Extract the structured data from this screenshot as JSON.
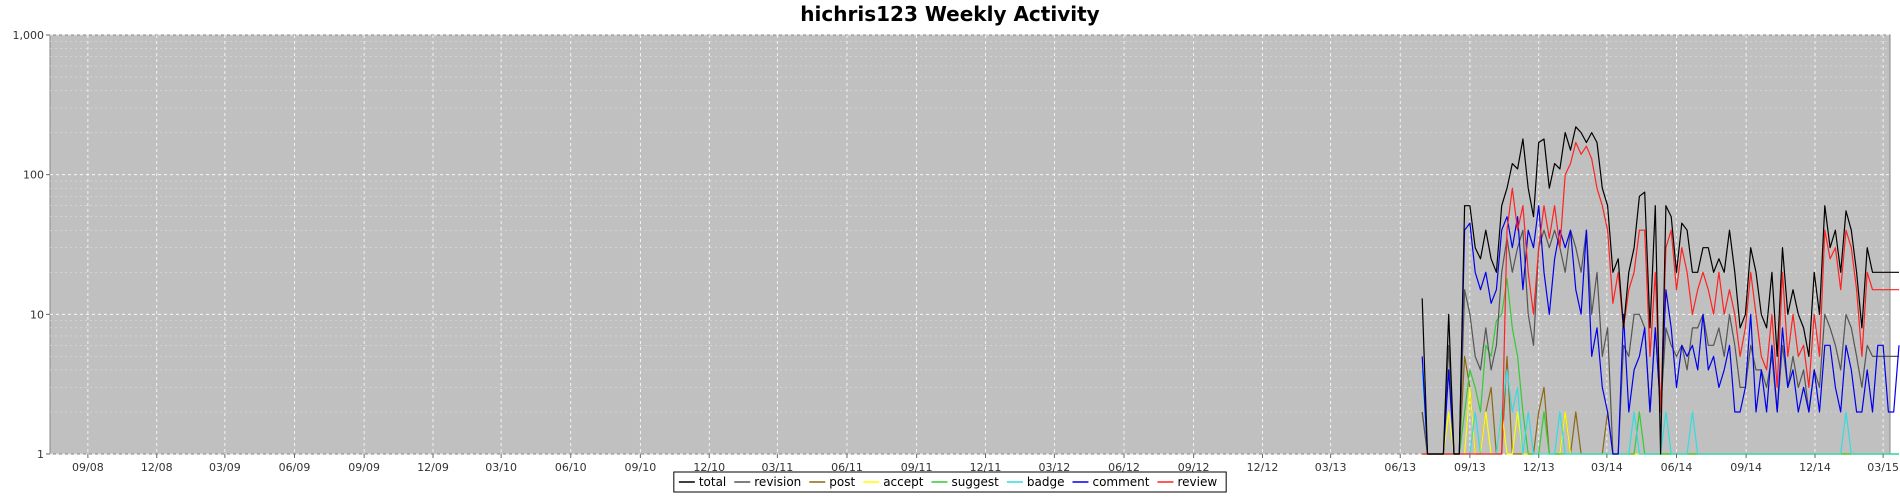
{
  "chart_data": {
    "type": "line",
    "title": "hichris123 Weekly Activity",
    "xlabel": "",
    "ylabel": "",
    "y_scale": "log",
    "ylim": [
      1,
      1000
    ],
    "y_ticks": [
      1,
      10,
      100,
      1000
    ],
    "y_tick_labels": [
      "1",
      "10",
      "100",
      "1,000"
    ],
    "grid": true,
    "legend_position": "bottom-center",
    "x_tick_labels": [
      "09/08",
      "12/08",
      "03/09",
      "06/09",
      "09/09",
      "12/09",
      "03/10",
      "06/10",
      "09/10",
      "12/10",
      "03/11",
      "06/11",
      "09/11",
      "12/11",
      "03/12",
      "06/12",
      "09/12",
      "12/12",
      "03/13",
      "06/13",
      "09/13",
      "12/13",
      "03/14",
      "06/14",
      "09/14",
      "12/14",
      "03/15"
    ],
    "x_weeks": [
      "2013-06-30",
      "2013-07-07",
      "2013-07-14",
      "2013-07-21",
      "2013-07-28",
      "2013-08-04",
      "2013-08-11",
      "2013-08-18",
      "2013-08-25",
      "2013-09-01",
      "2013-09-08",
      "2013-09-15",
      "2013-09-22",
      "2013-09-29",
      "2013-10-06",
      "2013-10-13",
      "2013-10-20",
      "2013-10-27",
      "2013-11-03",
      "2013-11-10",
      "2013-11-17",
      "2013-11-24",
      "2013-12-01",
      "2013-12-08",
      "2013-12-15",
      "2013-12-22",
      "2013-12-29",
      "2014-01-05",
      "2014-01-12",
      "2014-01-19",
      "2014-01-26",
      "2014-02-02",
      "2014-02-09",
      "2014-02-16",
      "2014-02-23",
      "2014-03-02",
      "2014-03-09",
      "2014-03-16",
      "2014-03-23",
      "2014-03-30",
      "2014-04-06",
      "2014-04-13",
      "2014-04-20",
      "2014-04-27",
      "2014-05-04",
      "2014-05-11",
      "2014-05-18",
      "2014-05-25",
      "2014-06-01",
      "2014-06-08",
      "2014-06-15",
      "2014-06-22",
      "2014-06-29",
      "2014-07-06",
      "2014-07-13",
      "2014-07-20",
      "2014-07-27",
      "2014-08-03",
      "2014-08-10",
      "2014-08-17",
      "2014-08-24",
      "2014-08-31",
      "2014-09-07",
      "2014-09-14",
      "2014-09-21",
      "2014-09-28",
      "2014-10-05",
      "2014-10-12",
      "2014-10-19",
      "2014-10-26",
      "2014-11-02",
      "2014-11-09",
      "2014-11-16",
      "2014-11-23",
      "2014-11-30",
      "2014-12-07",
      "2014-12-14",
      "2014-12-21",
      "2014-12-28",
      "2015-01-04",
      "2015-01-11",
      "2015-01-18",
      "2015-01-25",
      "2015-02-01",
      "2015-02-08",
      "2015-02-15",
      "2015-02-22",
      "2015-03-01",
      "2015-03-08",
      "2015-03-15",
      "2015-03-22"
    ],
    "series": [
      {
        "name": "total",
        "color": "#000000",
        "values": [
          13,
          1,
          1,
          1,
          1,
          10,
          1,
          1,
          60,
          60,
          30,
          25,
          40,
          25,
          20,
          60,
          80,
          120,
          110,
          180,
          80,
          50,
          170,
          180,
          80,
          120,
          110,
          200,
          150,
          220,
          200,
          170,
          200,
          170,
          80,
          60,
          20,
          25,
          8,
          20,
          30,
          70,
          75,
          8,
          60,
          1,
          60,
          50,
          20,
          45,
          40,
          20,
          20,
          30,
          30,
          20,
          25,
          20,
          40,
          20,
          8,
          10,
          30,
          20,
          10,
          8,
          20,
          5,
          30,
          10,
          15,
          10,
          8,
          5,
          20,
          10,
          60,
          30,
          40,
          20,
          55,
          40,
          20,
          8,
          30,
          20,
          20,
          20,
          20,
          20,
          20
        ]
      },
      {
        "name": "revision",
        "color": "#555555",
        "values": [
          2,
          1,
          1,
          1,
          1,
          6,
          1,
          1,
          15,
          10,
          5,
          4,
          8,
          4,
          6,
          20,
          35,
          20,
          30,
          40,
          10,
          6,
          30,
          40,
          30,
          40,
          30,
          20,
          40,
          30,
          20,
          40,
          10,
          20,
          5,
          8,
          1,
          1,
          6,
          5,
          10,
          10,
          8,
          2,
          8,
          2,
          8,
          6,
          5,
          6,
          4,
          8,
          8,
          10,
          6,
          6,
          8,
          5,
          10,
          6,
          3,
          3,
          6,
          4,
          4,
          3,
          5,
          2,
          6,
          3,
          5,
          3,
          4,
          2,
          4,
          3,
          10,
          8,
          6,
          4,
          10,
          8,
          5,
          3,
          6,
          5,
          5,
          5,
          5,
          5,
          5
        ]
      },
      {
        "name": "post",
        "color": "#8b6914",
        "values": [
          2,
          1,
          1,
          1,
          1,
          1,
          1,
          1,
          5,
          3,
          1,
          1,
          2,
          3,
          1,
          1,
          5,
          1,
          1,
          1,
          1,
          1,
          2,
          3,
          1,
          1,
          1,
          2,
          1,
          2,
          1,
          1,
          1,
          1,
          1,
          2,
          1,
          1,
          1,
          1,
          1,
          1,
          1,
          1,
          1,
          1,
          1,
          1,
          1,
          1,
          1,
          1,
          1,
          1,
          1,
          1,
          1,
          1,
          1,
          1,
          1,
          1,
          1,
          1,
          1,
          1,
          1,
          1,
          1,
          1,
          1,
          1,
          1,
          1,
          1,
          1,
          1,
          1,
          1,
          1,
          1,
          1,
          1,
          1,
          1,
          1,
          1,
          1,
          1,
          1,
          1
        ]
      },
      {
        "name": "accept",
        "color": "#ffff00",
        "values": [
          1,
          1,
          1,
          1,
          1,
          2,
          1,
          1,
          1,
          3,
          1,
          1,
          2,
          1,
          1,
          2,
          1,
          1,
          2,
          1,
          1,
          1,
          1,
          1,
          1,
          1,
          1,
          2,
          1,
          1,
          1,
          1,
          1,
          1,
          1,
          1,
          1,
          1,
          1,
          1,
          1,
          1,
          1,
          1,
          1,
          1,
          1,
          1,
          1,
          1,
          1,
          1,
          1,
          1,
          1,
          1,
          1,
          1,
          1,
          1,
          1,
          1,
          1,
          1,
          1,
          1,
          1,
          1,
          1,
          1,
          1,
          1,
          1,
          1,
          1,
          1,
          1,
          1,
          1,
          1,
          1,
          1,
          1,
          1,
          1,
          1,
          1,
          1,
          1,
          1,
          1
        ]
      },
      {
        "name": "suggest",
        "color": "#33cc33",
        "values": [
          1,
          1,
          1,
          1,
          1,
          1,
          1,
          1,
          2,
          4,
          3,
          2,
          6,
          5,
          9,
          10,
          18,
          8,
          5,
          2,
          1,
          1,
          1,
          2,
          1,
          1,
          1,
          1,
          1,
          1,
          1,
          1,
          1,
          1,
          1,
          1,
          1,
          1,
          1,
          1,
          1,
          2,
          1,
          1,
          1,
          1,
          1,
          1,
          1,
          1,
          1,
          1,
          1,
          1,
          1,
          1,
          1,
          1,
          1,
          1,
          1,
          1,
          1,
          1,
          1,
          1,
          1,
          1,
          1,
          1,
          1,
          1,
          1,
          1,
          1,
          1,
          1,
          1,
          1,
          1,
          1,
          1,
          1,
          1,
          1,
          1,
          1,
          1,
          1,
          1,
          1
        ]
      },
      {
        "name": "badge",
        "color": "#33dddd",
        "values": [
          4,
          1,
          1,
          1,
          1,
          1,
          1,
          1,
          1,
          1,
          2,
          1,
          1,
          1,
          1,
          2,
          4,
          2,
          3,
          1,
          2,
          1,
          1,
          1,
          1,
          1,
          2,
          1,
          1,
          1,
          1,
          1,
          1,
          1,
          1,
          1,
          1,
          1,
          1,
          1,
          2,
          1,
          1,
          1,
          1,
          1,
          2,
          1,
          1,
          1,
          1,
          2,
          1,
          1,
          1,
          1,
          1,
          1,
          1,
          1,
          1,
          1,
          1,
          1,
          1,
          1,
          1,
          1,
          1,
          1,
          1,
          1,
          1,
          1,
          1,
          1,
          1,
          1,
          1,
          1,
          2,
          1,
          1,
          1,
          1,
          1,
          1,
          1,
          1,
          1,
          1
        ]
      },
      {
        "name": "comment",
        "color": "#0000ee",
        "values": [
          5,
          1,
          1,
          1,
          1,
          4,
          1,
          1,
          40,
          45,
          20,
          15,
          20,
          12,
          15,
          40,
          50,
          30,
          50,
          15,
          40,
          30,
          60,
          20,
          10,
          25,
          40,
          30,
          40,
          15,
          10,
          40,
          5,
          8,
          3,
          2,
          1,
          1,
          10,
          2,
          4,
          5,
          8,
          2,
          8,
          2,
          15,
          8,
          3,
          6,
          5,
          6,
          4,
          10,
          4,
          5,
          3,
          4,
          6,
          2,
          2,
          3,
          10,
          2,
          4,
          2,
          6,
          2,
          8,
          3,
          4,
          2,
          3,
          2,
          4,
          2,
          6,
          6,
          3,
          2,
          6,
          4,
          2,
          2,
          4,
          2,
          6,
          6,
          2,
          2,
          6
        ]
      },
      {
        "name": "review",
        "color": "#ff2222",
        "values": [
          1,
          1,
          1,
          1,
          1,
          1,
          1,
          1,
          1,
          1,
          1,
          1,
          1,
          1,
          1,
          1,
          40,
          80,
          40,
          60,
          20,
          10,
          30,
          60,
          35,
          60,
          30,
          100,
          120,
          170,
          140,
          160,
          130,
          80,
          60,
          40,
          12,
          20,
          8,
          15,
          20,
          40,
          40,
          5,
          20,
          2,
          30,
          40,
          15,
          30,
          20,
          10,
          15,
          20,
          15,
          10,
          20,
          10,
          15,
          10,
          5,
          8,
          20,
          10,
          5,
          4,
          10,
          3,
          20,
          5,
          10,
          5,
          6,
          3,
          10,
          5,
          40,
          25,
          30,
          15,
          40,
          30,
          15,
          5,
          20,
          15,
          15,
          15,
          15,
          15,
          15
        ]
      }
    ]
  }
}
